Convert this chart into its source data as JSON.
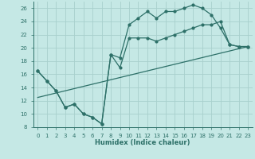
{
  "xlabel": "Humidex (Indice chaleur)",
  "background_color": "#c5e8e5",
  "grid_color": "#a8d0cc",
  "line_color": "#2d7068",
  "xlim": [
    -0.5,
    23.5
  ],
  "ylim": [
    8,
    27
  ],
  "xticks": [
    0,
    1,
    2,
    3,
    4,
    5,
    6,
    7,
    8,
    9,
    10,
    11,
    12,
    13,
    14,
    15,
    16,
    17,
    18,
    19,
    20,
    21,
    22,
    23
  ],
  "yticks": [
    8,
    10,
    12,
    14,
    16,
    18,
    20,
    22,
    24,
    26
  ],
  "line1_x": [
    0,
    1,
    2,
    3,
    4,
    5,
    6,
    7,
    8,
    9,
    10,
    11,
    12,
    13,
    14,
    15,
    16,
    17,
    18,
    19,
    20,
    21,
    22,
    23
  ],
  "line1_y": [
    16.5,
    15.0,
    13.5,
    11.0,
    11.5,
    10.0,
    9.5,
    8.5,
    19.0,
    18.5,
    23.5,
    24.5,
    25.5,
    24.5,
    25.5,
    25.5,
    26.0,
    26.5,
    26.0,
    25.0,
    23.0,
    20.5,
    20.2,
    20.2
  ],
  "line2_x": [
    0,
    1,
    2,
    3,
    4,
    5,
    6,
    7,
    8,
    9,
    10,
    11,
    12,
    13,
    14,
    15,
    16,
    17,
    18,
    19,
    20,
    21,
    22,
    23
  ],
  "line2_y": [
    16.5,
    15.0,
    13.5,
    11.0,
    11.5,
    10.0,
    9.5,
    8.5,
    19.0,
    17.0,
    21.5,
    21.5,
    21.5,
    21.0,
    21.5,
    22.0,
    22.5,
    23.0,
    23.5,
    23.5,
    24.0,
    20.5,
    20.2,
    20.2
  ],
  "line3_x": [
    0,
    23
  ],
  "line3_y": [
    12.5,
    20.2
  ],
  "marker_size": 2.0,
  "line_width": 0.9,
  "tick_labelsize": 5.0,
  "xlabel_fontsize": 6.0
}
